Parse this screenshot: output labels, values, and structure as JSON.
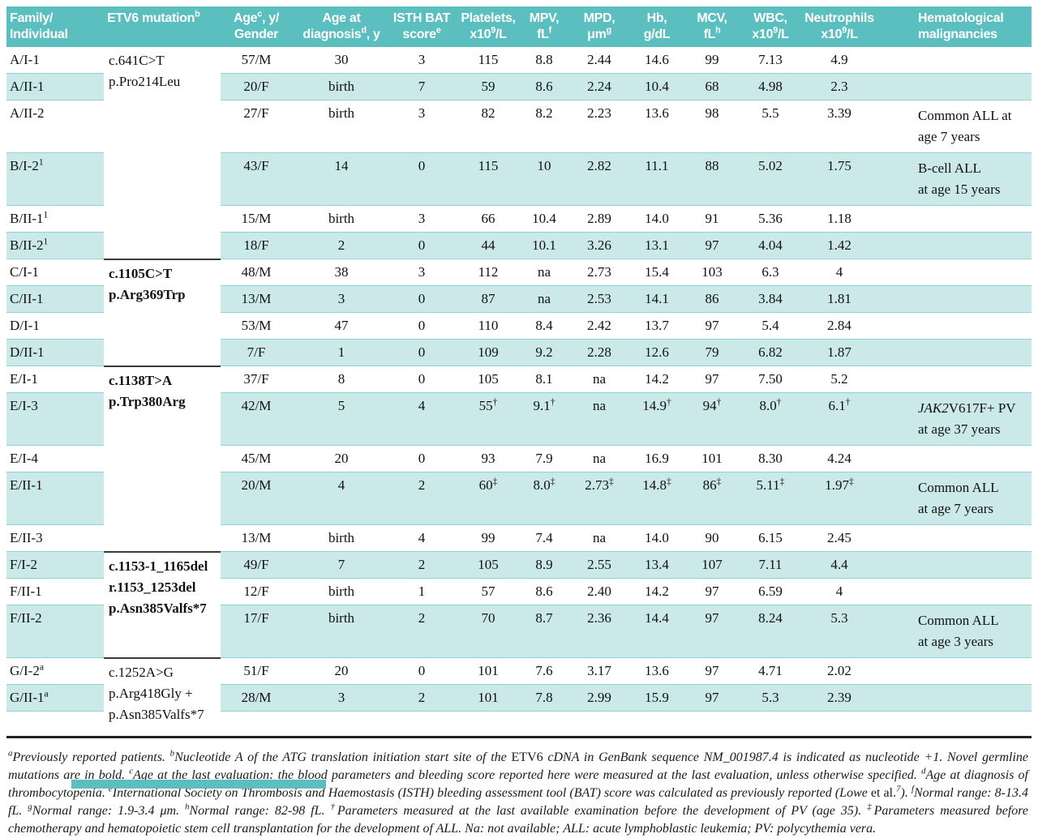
{
  "colors": {
    "header_background": "#5bbebf",
    "row_stripe": "#cbe9e9",
    "row_divider": "#8fd2d2",
    "group_divider": "#3a3a3a",
    "header_text": "#ffffff",
    "body_text": "#111111"
  },
  "table": {
    "columns": [
      {
        "id": "family",
        "label": "Family/\nIndividual",
        "align": "left"
      },
      {
        "id": "mutation",
        "label": "ETV6 mutation^{b}",
        "align": "left"
      },
      {
        "id": "age_gender",
        "label": "Age^{c}, y/\nGender",
        "align": "center"
      },
      {
        "id": "age_dx",
        "label": "Age at\ndiagnosis^{d}, y",
        "align": "center"
      },
      {
        "id": "bat",
        "label": "ISTH BAT\nscore^{e}",
        "align": "center"
      },
      {
        "id": "plt",
        "label": "Platelets,\nx10^{9}/L",
        "align": "center"
      },
      {
        "id": "mpv",
        "label": "MPV,\nfL^{f}",
        "align": "center"
      },
      {
        "id": "mpd",
        "label": "MPD,\nμm^{g}",
        "align": "center"
      },
      {
        "id": "hb",
        "label": "Hb,\ng/dL",
        "align": "center"
      },
      {
        "id": "mcv",
        "label": "MCV,\nfL^{h}",
        "align": "center"
      },
      {
        "id": "wbc",
        "label": "WBC,\nx10^{9}/L",
        "align": "center"
      },
      {
        "id": "neut",
        "label": "Neutrophils\nx10^{9}/L",
        "align": "center"
      },
      {
        "id": "malig",
        "label": "Hematological\nmalignancies",
        "align": "left"
      }
    ],
    "mutation_groups": [
      {
        "start": 0,
        "span": 6,
        "text": "c.641C>T\np.Pro214Leu",
        "bold": false,
        "divider_top": false
      },
      {
        "start": 6,
        "span": 4,
        "text": "c.1105C>T\np.Arg369Trp",
        "bold": true,
        "divider_top": true
      },
      {
        "start": 10,
        "span": 5,
        "text": "c.1138T>A\np.Trp380Arg",
        "bold": true,
        "divider_top": true
      },
      {
        "start": 15,
        "span": 3,
        "text": "c.1153-1_1165del\nr.1153_1253del\np.Asn385Valfs*7",
        "bold": true,
        "divider_top": true
      },
      {
        "start": 18,
        "span": 2,
        "text": "c.1252A>G\np.Arg418Gly +\np.Asn385Valfs*7",
        "bold": false,
        "divider_top": true
      }
    ],
    "rows": [
      {
        "family": "A/I-1",
        "age_gender": "57/M",
        "age_dx": "30",
        "bat": "3",
        "plt": "115",
        "mpv": "8.8",
        "mpd": "2.44",
        "hb": "14.6",
        "mcv": "99",
        "wbc": "7.13",
        "neut": "4.9",
        "malig": ""
      },
      {
        "family": "A/II-1",
        "age_gender": "20/F",
        "age_dx": "birth",
        "bat": "7",
        "plt": "59",
        "mpv": "8.6",
        "mpd": "2.24",
        "hb": "10.4",
        "mcv": "68",
        "wbc": "4.98",
        "neut": "2.3",
        "malig": ""
      },
      {
        "family": "A/II-2",
        "age_gender": "27/F",
        "age_dx": "birth",
        "bat": "3",
        "plt": "82",
        "mpv": "8.2",
        "mpd": "2.23",
        "hb": "13.6",
        "mcv": "98",
        "wbc": "5.5",
        "neut": "3.39",
        "malig": "Common ALL at\nage 7 years"
      },
      {
        "family": "B/I-2^{1}",
        "age_gender": "43/F",
        "age_dx": "14",
        "bat": "0",
        "plt": "115",
        "mpv": "10",
        "mpd": "2.82",
        "hb": "11.1",
        "mcv": "88",
        "wbc": "5.02",
        "neut": "1.75",
        "malig": "B-cell ALL\nat age 15 years"
      },
      {
        "family": "B/II-1^{1}",
        "age_gender": "15/M",
        "age_dx": "birth",
        "bat": "3",
        "plt": "66",
        "mpv": "10.4",
        "mpd": "2.89",
        "hb": "14.0",
        "mcv": "91",
        "wbc": "5.36",
        "neut": "1.18",
        "malig": ""
      },
      {
        "family": "B/II-2^{1}",
        "age_gender": "18/F",
        "age_dx": "2",
        "bat": "0",
        "plt": "44",
        "mpv": "10.1",
        "mpd": "3.26",
        "hb": "13.1",
        "mcv": "97",
        "wbc": "4.04",
        "neut": "1.42",
        "malig": ""
      },
      {
        "family": "C/I-1",
        "age_gender": "48/M",
        "age_dx": "38",
        "bat": "3",
        "plt": "112",
        "mpv": "na",
        "mpd": "2.73",
        "hb": "15.4",
        "mcv": "103",
        "wbc": "6.3",
        "neut": "4",
        "malig": ""
      },
      {
        "family": "C/II-1",
        "age_gender": "13/M",
        "age_dx": "3",
        "bat": "0",
        "plt": "87",
        "mpv": "na",
        "mpd": "2.53",
        "hb": "14.1",
        "mcv": "86",
        "wbc": "3.84",
        "neut": "1.81",
        "malig": ""
      },
      {
        "family": "D/I-1",
        "age_gender": "53/M",
        "age_dx": "47",
        "bat": "0",
        "plt": "110",
        "mpv": "8.4",
        "mpd": "2.42",
        "hb": "13.7",
        "mcv": "97",
        "wbc": "5.4",
        "neut": "2.84",
        "malig": ""
      },
      {
        "family": "D/II-1",
        "age_gender": "7/F",
        "age_dx": "1",
        "bat": "0",
        "plt": "109",
        "mpv": "9.2",
        "mpd": "2.28",
        "hb": "12.6",
        "mcv": "79",
        "wbc": "6.82",
        "neut": "1.87",
        "malig": ""
      },
      {
        "family": "E/I-1",
        "age_gender": "37/F",
        "age_dx": "8",
        "bat": "0",
        "plt": "105",
        "mpv": "8.1",
        "mpd": "na",
        "hb": "14.2",
        "mcv": "97",
        "wbc": "7.50",
        "neut": "5.2",
        "malig": ""
      },
      {
        "family": "E/I-3",
        "age_gender": "42/M",
        "age_dx": "5",
        "bat": "4",
        "plt": "55^{†}",
        "mpv": "9.1^{†}",
        "mpd": "na",
        "hb": "14.9^{†}",
        "mcv": "94^{†}",
        "wbc": "8.0^{†}",
        "neut": "6.1^{†}",
        "malig": "*JAK2*V617F+ PV\nat age 37 years"
      },
      {
        "family": "E/I-4",
        "age_gender": "45/M",
        "age_dx": "20",
        "bat": "0",
        "plt": "93",
        "mpv": "7.9",
        "mpd": "na",
        "hb": "16.9",
        "mcv": "101",
        "wbc": "8.30",
        "neut": "4.24",
        "malig": ""
      },
      {
        "family": "E/II-1",
        "age_gender": "20/M",
        "age_dx": "4",
        "bat": "2",
        "plt": "60^{‡}",
        "mpv": "8.0^{‡}",
        "mpd": "2.73^{‡}",
        "hb": "14.8^{‡}",
        "mcv": "86^{‡}",
        "wbc": "5.11^{‡}",
        "neut": "1.97^{‡}",
        "malig": "Common ALL\nat age 7 years"
      },
      {
        "family": "E/II-3",
        "age_gender": "13/M",
        "age_dx": "birth",
        "bat": "4",
        "plt": "99",
        "mpv": "7.4",
        "mpd": "na",
        "hb": "14.0",
        "mcv": "90",
        "wbc": "6.15",
        "neut": "2.45",
        "malig": ""
      },
      {
        "family": "F/I-2",
        "age_gender": "49/F",
        "age_dx": "7",
        "bat": "2",
        "plt": "105",
        "mpv": "8.9",
        "mpd": "2.55",
        "hb": "13.4",
        "mcv": "107",
        "wbc": "7.11",
        "neut": "4.4",
        "malig": ""
      },
      {
        "family": "F/II-1",
        "age_gender": "12/F",
        "age_dx": "birth",
        "bat": "1",
        "plt": "57",
        "mpv": "8.6",
        "mpd": "2.40",
        "hb": "14.2",
        "mcv": "97",
        "wbc": "6.59",
        "neut": "4",
        "malig": ""
      },
      {
        "family": "F/II-2",
        "age_gender": "17/F",
        "age_dx": "birth",
        "bat": "2",
        "plt": "70",
        "mpv": "8.7",
        "mpd": "2.36",
        "hb": "14.4",
        "mcv": "97",
        "wbc": "8.24",
        "neut": "5.3",
        "malig": "Common ALL\nat age 3 years"
      },
      {
        "family": "G/I-2^{a}",
        "age_gender": "51/F",
        "age_dx": "20",
        "bat": "0",
        "plt": "101",
        "mpv": "7.6",
        "mpd": "3.17",
        "hb": "13.6",
        "mcv": "97",
        "wbc": "4.71",
        "neut": "2.02",
        "malig": ""
      },
      {
        "family": "G/II-1^{a}",
        "age_gender": "28/M",
        "age_dx": "3",
        "bat": "2",
        "plt": "101",
        "mpv": "7.8",
        "mpd": "2.99",
        "hb": "15.9",
        "mcv": "97",
        "wbc": "5.3",
        "neut": "2.39",
        "malig": ""
      }
    ]
  },
  "footnote": "^{a}Previously reported patients. ^{b}Nucleotide A of the ATG translation initiation start site of the ~ETV6~ cDNA in GenBank sequence NM_001987.4 is indicated as nucleotide +1. Novel germline mutations are in bold. ^{c}Age at the last evaluation: the blood parameters and bleeding score reported here were measured at the last evaluation, unless otherwise specified. ^{d}Age at diagnosis of thrombocytopenia. ^{e}International Society on Thrombosis and Haemostasis (ISTH) bleeding assessment tool (BAT) score was calculated as previously reported (Lowe ~et al.~^{7}). ^{f}Normal range: 8-13.4 fL. ^{g}Normal range: 1.9-3.4 μm. ^{h}Normal range: 82-98 fL. ^{†}Parameters measured at the last available examination before the development of PV (age 35). ^{‡}Parameters measured before chemotherapy and hematopoietic stem cell transplantation for the development of ALL. Na: not available; ALL: acute lymphoblastic leukemia; PV: polycythemia vera."
}
